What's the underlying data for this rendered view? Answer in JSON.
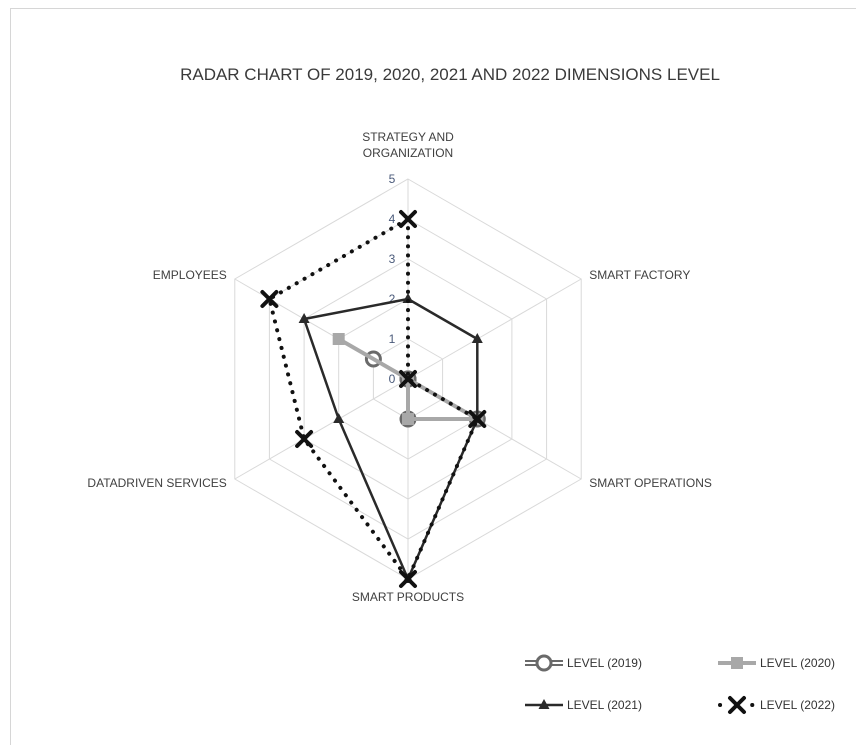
{
  "chart_data": {
    "type": "radar",
    "title": "RADAR CHART OF 2019, 2020, 2021  AND 2022 DIMENSIONS LEVEL",
    "categories": [
      "STRATEGY AND ORGANIZATION",
      "SMART FACTORY",
      "SMART OPERATIONS",
      "SMART PRODUCTS",
      "DATADRIVEN SERVICES",
      "EMPLOYEES"
    ],
    "rlim": [
      0,
      5
    ],
    "ticks": [
      0,
      1,
      2,
      3,
      4,
      5
    ],
    "series": [
      {
        "name": "LEVEL (2019)",
        "values": [
          0,
          0,
          2,
          1,
          0,
          1
        ],
        "color": "#6a6a6a",
        "marker": "circle",
        "line": "double"
      },
      {
        "name": "LEVEL (2020)",
        "values": [
          0,
          0,
          2,
          1,
          0,
          2
        ],
        "color": "#a8a8a8",
        "marker": "square",
        "line": "thick"
      },
      {
        "name": "LEVEL (2021)",
        "values": [
          2,
          2,
          2,
          5,
          2,
          3
        ],
        "color": "#2a2a2a",
        "marker": "triangle",
        "line": "solid"
      },
      {
        "name": "LEVEL (2022)",
        "values": [
          4,
          0,
          2,
          5,
          3,
          4
        ],
        "color": "#111111",
        "marker": "x",
        "line": "dotted"
      }
    ],
    "grid": true,
    "legend_position": "bottom-right"
  }
}
